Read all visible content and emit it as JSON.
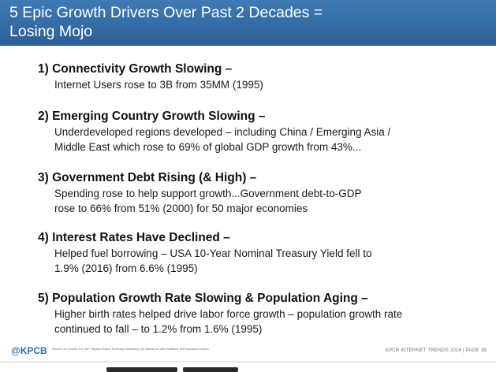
{
  "header": {
    "title_line1": "5 Epic Growth Drivers Over Past 2 Decades =",
    "title_line2": "Losing Mojo"
  },
  "items": [
    {
      "heading": "1) Connectivity Growth Slowing –",
      "lines": [
        "Internet Users rose to 3B from 35MM (1995)"
      ]
    },
    {
      "heading": "2) Emerging Country Growth Slowing –",
      "lines": [
        "Underdeveloped regions developed – including China / Emerging Asia /",
        "Middle East which rose to 69% of global GDP growth from 43%..."
      ]
    },
    {
      "heading": "3) Government Debt Rising (& High) –",
      "lines": [
        "Spending rose to help support growth...Government debt-to-GDP",
        "rose to 66% from 51% (2000) for 50 major economies"
      ]
    },
    {
      "heading": "4) Interest Rates Have Declined –",
      "lines": [
        "Helped fuel borrowing – USA 10-Year Nominal Treasury Yield fell to",
        "1.9% (2016) from 6.6% (1995)"
      ]
    },
    {
      "heading": "5) Population Growth Rate Slowing & Population Aging –",
      "lines": [
        "Higher birth rates helped drive labor force growth – population growth rate",
        "continued to fall – to 1.2% from 1.6% (1995)"
      ]
    }
  ],
  "footer": {
    "logo": "@KPCB",
    "source": "Source: US Census, ITU, IMF, Stephen Roach, McKinsey, Bloomberg, US Bureau of Labor Statistics, UN Population Division",
    "right": "KPCB INTERNET TRENDS 2016 | PAGE 38"
  }
}
